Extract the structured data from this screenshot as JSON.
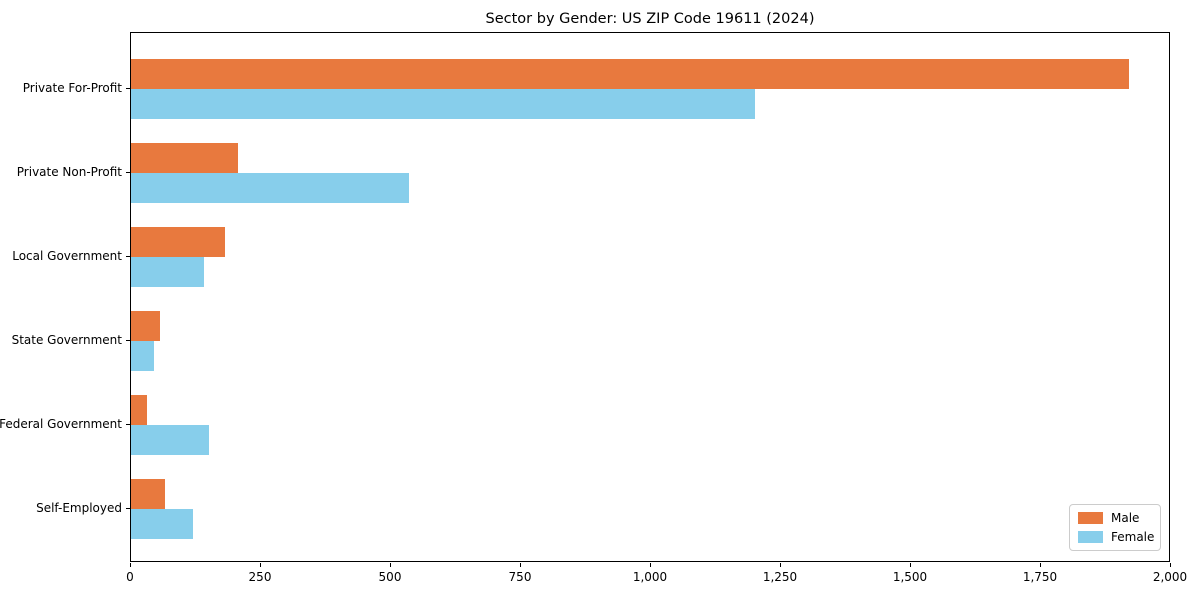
{
  "chart_data": {
    "type": "bar",
    "orientation": "horizontal",
    "title": "Sector by Gender: US ZIP Code 19611 (2024)",
    "categories": [
      "Private For-Profit",
      "Private Non-Profit",
      "Local Government",
      "State Government",
      "Federal Government",
      "Self-Employed"
    ],
    "series": [
      {
        "name": "Male",
        "color": "#e8793e",
        "values": [
          1920,
          205,
          180,
          55,
          30,
          65
        ]
      },
      {
        "name": "Female",
        "color": "#87ceeb",
        "values": [
          1200,
          535,
          140,
          45,
          150,
          120
        ]
      }
    ],
    "xlabel": "",
    "ylabel": "",
    "xlim": [
      0,
      2000
    ],
    "xticks": [
      0,
      250,
      500,
      750,
      1000,
      1250,
      1500,
      1750,
      2000
    ],
    "grid": false,
    "legend_position": "lower right"
  }
}
